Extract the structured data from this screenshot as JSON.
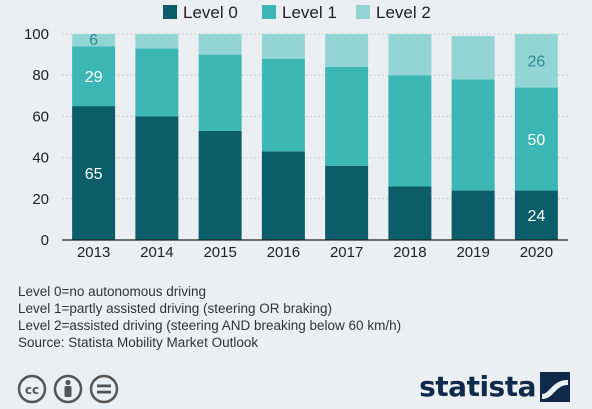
{
  "chart_data": {
    "type": "bar",
    "stacked": true,
    "categories": [
      "2013",
      "2014",
      "2015",
      "2016",
      "2017",
      "2018",
      "2019",
      "2020"
    ],
    "series": [
      {
        "name": "Level 0",
        "color": "#0b5e69",
        "values": [
          65,
          60,
          53,
          43,
          36,
          26,
          24,
          24
        ]
      },
      {
        "name": "Level 1",
        "color": "#3cb7b5",
        "values": [
          29,
          33,
          37,
          45,
          48,
          54,
          54,
          50
        ]
      },
      {
        "name": "Level 2",
        "color": "#93d5d5",
        "values": [
          6,
          7,
          10,
          12,
          16,
          20,
          21,
          26
        ]
      }
    ],
    "data_labels": [
      {
        "series": 0,
        "category": "2013",
        "text": "65"
      },
      {
        "series": 1,
        "category": "2013",
        "text": "29"
      },
      {
        "series": 2,
        "category": "2013",
        "text": "6"
      },
      {
        "series": 0,
        "category": "2020",
        "text": "24"
      },
      {
        "series": 1,
        "category": "2020",
        "text": "50"
      },
      {
        "series": 2,
        "category": "2020",
        "text": "26"
      }
    ],
    "ylim": [
      0,
      100
    ],
    "yticks": [
      "0",
      "20",
      "40",
      "60",
      "80",
      "100"
    ],
    "grid": true,
    "legend_position": "top"
  },
  "notes": [
    "Level 0=no autonomous driving",
    "Level 1=partly assisted driving (steering OR braking)",
    "Level 2=assisted driving (steering AND breaking below 60 km/h)",
    "Source: Statista Mobility Market Outlook"
  ],
  "brand": {
    "name": "statista"
  },
  "icons": [
    "creative-commons-icon",
    "attribution-icon",
    "no-derivatives-icon",
    "statista-logo-icon"
  ]
}
